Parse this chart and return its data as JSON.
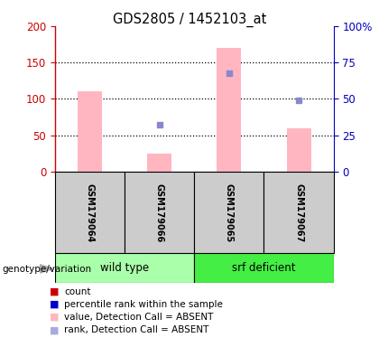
{
  "title": "GDS2805 / 1452103_at",
  "samples": [
    "GSM179064",
    "GSM179066",
    "GSM179065",
    "GSM179067"
  ],
  "pink_bar_values": [
    110,
    25,
    170,
    60
  ],
  "blue_square_values": [
    null,
    65,
    135,
    98
  ],
  "left_ylim": [
    0,
    200
  ],
  "right_ylim": [
    0,
    100
  ],
  "left_yticks": [
    0,
    50,
    100,
    150,
    200
  ],
  "right_yticks": [
    0,
    25,
    50,
    75,
    100
  ],
  "right_yticklabels": [
    "0",
    "25",
    "50",
    "75",
    "100%"
  ],
  "dotted_lines": [
    50,
    100,
    150
  ],
  "group_labels": [
    "wild type",
    "srf deficient"
  ],
  "group_ranges": [
    [
      0,
      1
    ],
    [
      2,
      3
    ]
  ],
  "light_green": "#aaffaa",
  "bright_green": "#44ee44",
  "sample_bg_color": "#cccccc",
  "bar_color_pink": "#ffb6c1",
  "bar_color_red": "#cc0000",
  "square_color_blue": "#8888cc",
  "square_color_dark_blue": "#0000cc",
  "left_axis_color": "#cc0000",
  "right_axis_color": "#0000bb",
  "bar_width": 0.35,
  "legend_items": [
    {
      "color": "#cc0000",
      "label": "count"
    },
    {
      "color": "#0000cc",
      "label": "percentile rank within the sample"
    },
    {
      "color": "#ffb6c1",
      "label": "value, Detection Call = ABSENT"
    },
    {
      "color": "#aaaadd",
      "label": "rank, Detection Call = ABSENT"
    }
  ]
}
